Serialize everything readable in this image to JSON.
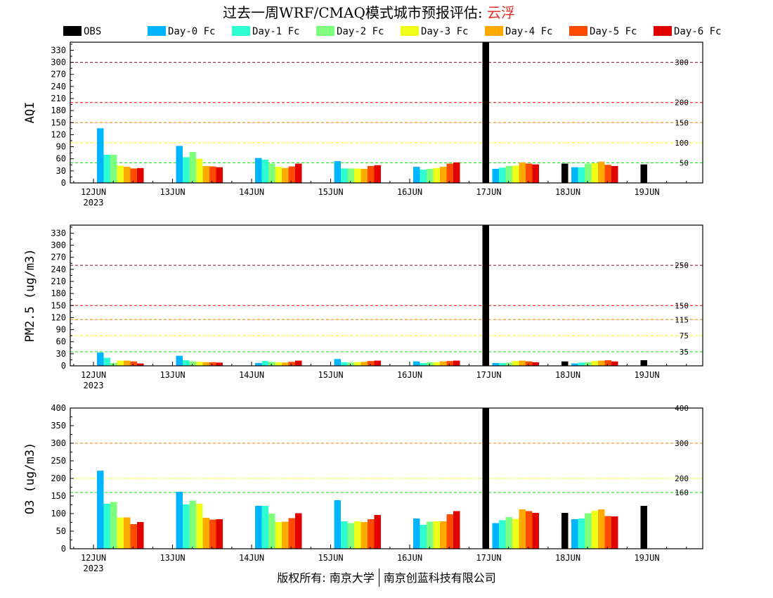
{
  "title": {
    "prefix": "过去一周WRF/CMAQ模式城市预报评估: ",
    "city": "云浮"
  },
  "footer": {
    "left": "版权所有: 南京大学",
    "right": "南京创蓝科技有限公司"
  },
  "colors": {
    "series": [
      "#000000",
      "#00b4ff",
      "#2dffd2",
      "#7dff7d",
      "#f0ff19",
      "#ffaa00",
      "#ff4b00",
      "#e10000"
    ],
    "frame": "#000000",
    "title_city": "#e0302a"
  },
  "chart_data": [
    {
      "type": "bar",
      "ylabel": "AQI",
      "ylim": [
        0,
        350
      ],
      "yticks": [
        0,
        30,
        60,
        90,
        120,
        150,
        180,
        210,
        240,
        270,
        300,
        330
      ],
      "categories": [
        "12JUN",
        "13JUN",
        "14JUN",
        "15JUN",
        "16JUN",
        "17JUN",
        "18JUN",
        "19JUN"
      ],
      "year_label": "2023",
      "legend": "top",
      "thresholds": [
        {
          "value": 300,
          "label": "300",
          "color": "#8b0030"
        },
        {
          "value": 200,
          "label": "200",
          "color": "#ff0000"
        },
        {
          "value": 150,
          "label": "150",
          "color": "#ff7e00"
        },
        {
          "value": 100,
          "label": "100",
          "color": "#ffff00"
        },
        {
          "value": 50,
          "label": "50",
          "color": "#00e400"
        }
      ],
      "series": [
        {
          "name": "OBS",
          "values": [
            null,
            null,
            null,
            null,
            null,
            350,
            48,
            46
          ]
        },
        {
          "name": "Day-0 Fc",
          "values": [
            136,
            92,
            62,
            54,
            40,
            35,
            39,
            null
          ]
        },
        {
          "name": "Day-1 Fc",
          "values": [
            70,
            64,
            58,
            36,
            33,
            38,
            39,
            null
          ]
        },
        {
          "name": "Day-2 Fc",
          "values": [
            70,
            77,
            48,
            36,
            35,
            42,
            48,
            null
          ]
        },
        {
          "name": "Day-3 Fc",
          "values": [
            43,
            60,
            40,
            36,
            37,
            43,
            49,
            null
          ]
        },
        {
          "name": "Day-4 Fc",
          "values": [
            40,
            42,
            37,
            35,
            40,
            51,
            53,
            null
          ]
        },
        {
          "name": "Day-5 Fc",
          "values": [
            36,
            41,
            41,
            42,
            48,
            48,
            45,
            null
          ]
        },
        {
          "name": "Day-6 Fc",
          "values": [
            37,
            39,
            48,
            44,
            51,
            46,
            42,
            null
          ]
        }
      ]
    },
    {
      "type": "bar",
      "ylabel": "PM2.5 (ug/m3)",
      "ylim": [
        0,
        350
      ],
      "yticks": [
        0,
        30,
        60,
        90,
        120,
        150,
        180,
        210,
        240,
        270,
        300,
        330
      ],
      "categories": [
        "12JUN",
        "13JUN",
        "14JUN",
        "15JUN",
        "16JUN",
        "17JUN",
        "18JUN",
        "19JUN"
      ],
      "year_label": "2023",
      "thresholds": [
        {
          "value": 250,
          "label": "250",
          "color": "#8b0030"
        },
        {
          "value": 150,
          "label": "150",
          "color": "#ff0000"
        },
        {
          "value": 115,
          "label": "115",
          "color": "#ff7e00"
        },
        {
          "value": 75,
          "label": "75",
          "color": "#ffff00"
        },
        {
          "value": 35,
          "label": "35",
          "color": "#00e400"
        }
      ],
      "series": [
        {
          "name": "OBS",
          "values": [
            null,
            null,
            null,
            null,
            null,
            350,
            11,
            14
          ]
        },
        {
          "name": "Day-0 Fc",
          "values": [
            33,
            25,
            7,
            17,
            11,
            7,
            6,
            null
          ]
        },
        {
          "name": "Day-1 Fc",
          "values": [
            20,
            14,
            12,
            9,
            7,
            7,
            8,
            null
          ]
        },
        {
          "name": "Day-2 Fc",
          "values": [
            7,
            11,
            10,
            8,
            9,
            8,
            9,
            null
          ]
        },
        {
          "name": "Day-3 Fc",
          "values": [
            13,
            10,
            9,
            9,
            9,
            12,
            12,
            null
          ]
        },
        {
          "name": "Day-4 Fc",
          "values": [
            13,
            9,
            8,
            10,
            11,
            13,
            13,
            null
          ]
        },
        {
          "name": "Day-5 Fc",
          "values": [
            11,
            9,
            10,
            12,
            12,
            11,
            14,
            null
          ]
        },
        {
          "name": "Day-6 Fc",
          "values": [
            6,
            8,
            13,
            13,
            13,
            9,
            11,
            null
          ]
        }
      ]
    },
    {
      "type": "bar",
      "ylabel": "O3 (ug/m3)",
      "ylim": [
        0,
        400
      ],
      "yticks": [
        0,
        50,
        100,
        150,
        200,
        250,
        300,
        350,
        400
      ],
      "categories": [
        "12JUN",
        "13JUN",
        "14JUN",
        "15JUN",
        "16JUN",
        "17JUN",
        "18JUN",
        "19JUN"
      ],
      "year_label": "2023",
      "thresholds": [
        {
          "value": 400,
          "label": "400",
          "color": "#8b0030"
        },
        {
          "value": 300,
          "label": "300",
          "color": "#ff7e00"
        },
        {
          "value": 200,
          "label": "200",
          "color": "#ffff00"
        },
        {
          "value": 160,
          "label": "160",
          "color": "#00e400"
        }
      ],
      "series": [
        {
          "name": "OBS",
          "values": [
            null,
            null,
            null,
            null,
            null,
            400,
            102,
            122
          ]
        },
        {
          "name": "Day-0 Fc",
          "values": [
            222,
            162,
            122,
            138,
            86,
            73,
            84,
            null
          ]
        },
        {
          "name": "Day-1 Fc",
          "values": [
            128,
            126,
            122,
            78,
            68,
            81,
            86,
            null
          ]
        },
        {
          "name": "Day-2 Fc",
          "values": [
            133,
            137,
            100,
            73,
            77,
            90,
            101,
            null
          ]
        },
        {
          "name": "Day-3 Fc",
          "values": [
            89,
            128,
            76,
            78,
            78,
            85,
            108,
            null
          ]
        },
        {
          "name": "Day-4 Fc",
          "values": [
            89,
            88,
            77,
            76,
            78,
            112,
            112,
            null
          ]
        },
        {
          "name": "Day-5 Fc",
          "values": [
            70,
            83,
            87,
            84,
            98,
            107,
            93,
            null
          ]
        },
        {
          "name": "Day-6 Fc",
          "values": [
            76,
            84,
            101,
            96,
            107,
            102,
            92,
            null
          ]
        }
      ]
    }
  ]
}
